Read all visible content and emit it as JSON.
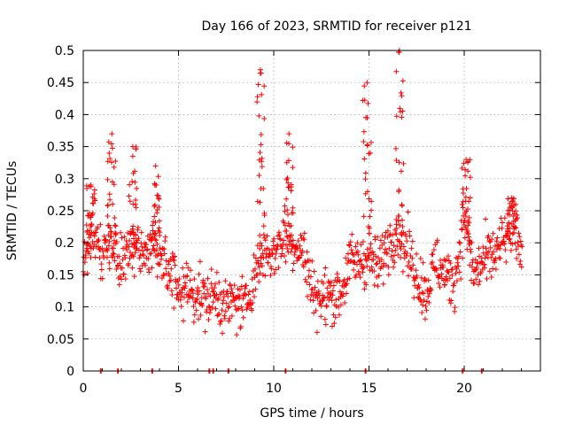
{
  "chart_data": {
    "type": "scatter",
    "title": "Day 166 of 2023, SRMTID for receiver p121",
    "xlabel": "GPS time / hours",
    "ylabel": "SRMTID / TECUs",
    "xlim": [
      0,
      24
    ],
    "ylim": [
      0,
      0.5
    ],
    "xticks": [
      0,
      5,
      10,
      15,
      20
    ],
    "xtick_labels": [
      "0",
      "5",
      "10",
      "15",
      "20"
    ],
    "yticks": [
      0,
      0.05,
      0.1,
      0.15,
      0.2,
      0.25,
      0.3,
      0.35,
      0.4,
      0.45,
      0.5
    ],
    "ytick_labels": [
      "0",
      "0.05",
      "0.1",
      "0.15",
      "0.2",
      "0.25",
      "0.3",
      "0.35",
      "0.4",
      "0.45",
      "0.5"
    ],
    "grid": true,
    "marker": "plus",
    "color": "#ff0000",
    "series_summary": [
      {
        "x": 0.0,
        "y": 0.17
      },
      {
        "x": 0.5,
        "y": 0.22
      },
      {
        "x": 1.0,
        "y": 0.18
      },
      {
        "x": 1.5,
        "y": 0.2
      },
      {
        "x": 2.0,
        "y": 0.16
      },
      {
        "x": 2.5,
        "y": 0.2
      },
      {
        "x": 3.0,
        "y": 0.19
      },
      {
        "x": 3.5,
        "y": 0.2
      },
      {
        "x": 4.0,
        "y": 0.19
      },
      {
        "x": 4.5,
        "y": 0.15
      },
      {
        "x": 5.0,
        "y": 0.13
      },
      {
        "x": 5.5,
        "y": 0.13
      },
      {
        "x": 6.0,
        "y": 0.12
      },
      {
        "x": 6.5,
        "y": 0.11
      },
      {
        "x": 7.0,
        "y": 0.12
      },
      {
        "x": 7.5,
        "y": 0.1
      },
      {
        "x": 8.0,
        "y": 0.11
      },
      {
        "x": 8.5,
        "y": 0.1
      },
      {
        "x": 9.0,
        "y": 0.15
      },
      {
        "x": 9.5,
        "y": 0.19
      },
      {
        "x": 10.0,
        "y": 0.18
      },
      {
        "x": 10.5,
        "y": 0.21
      },
      {
        "x": 11.0,
        "y": 0.2
      },
      {
        "x": 11.5,
        "y": 0.19
      },
      {
        "x": 12.0,
        "y": 0.13
      },
      {
        "x": 12.5,
        "y": 0.11
      },
      {
        "x": 13.0,
        "y": 0.12
      },
      {
        "x": 13.5,
        "y": 0.12
      },
      {
        "x": 14.0,
        "y": 0.17
      },
      {
        "x": 14.5,
        "y": 0.17
      },
      {
        "x": 15.0,
        "y": 0.18
      },
      {
        "x": 15.5,
        "y": 0.16
      },
      {
        "x": 16.0,
        "y": 0.2
      },
      {
        "x": 16.5,
        "y": 0.22
      },
      {
        "x": 17.0,
        "y": 0.19
      },
      {
        "x": 17.5,
        "y": 0.15
      },
      {
        "x": 18.0,
        "y": 0.12
      },
      {
        "x": 18.5,
        "y": 0.17
      },
      {
        "x": 19.0,
        "y": 0.15
      },
      {
        "x": 19.5,
        "y": 0.14
      },
      {
        "x": 20.0,
        "y": 0.24
      },
      {
        "x": 20.5,
        "y": 0.15
      },
      {
        "x": 21.0,
        "y": 0.17
      },
      {
        "x": 21.5,
        "y": 0.18
      },
      {
        "x": 22.0,
        "y": 0.2
      },
      {
        "x": 22.5,
        "y": 0.22
      },
      {
        "x": 23.0,
        "y": 0.19
      }
    ],
    "peaks": [
      {
        "x": 0.4,
        "y": 0.29
      },
      {
        "x": 1.5,
        "y": 0.37
      },
      {
        "x": 2.6,
        "y": 0.35
      },
      {
        "x": 3.8,
        "y": 0.32
      },
      {
        "x": 9.3,
        "y": 0.47
      },
      {
        "x": 10.8,
        "y": 0.37
      },
      {
        "x": 14.9,
        "y": 0.45
      },
      {
        "x": 16.6,
        "y": 0.5
      },
      {
        "x": 20.1,
        "y": 0.33
      },
      {
        "x": 22.5,
        "y": 0.27
      }
    ],
    "zero_points_x": [
      0.9,
      1.8,
      3.6,
      6.6,
      6.8,
      7.6,
      10.6,
      14.8,
      19.9,
      20.9
    ]
  }
}
